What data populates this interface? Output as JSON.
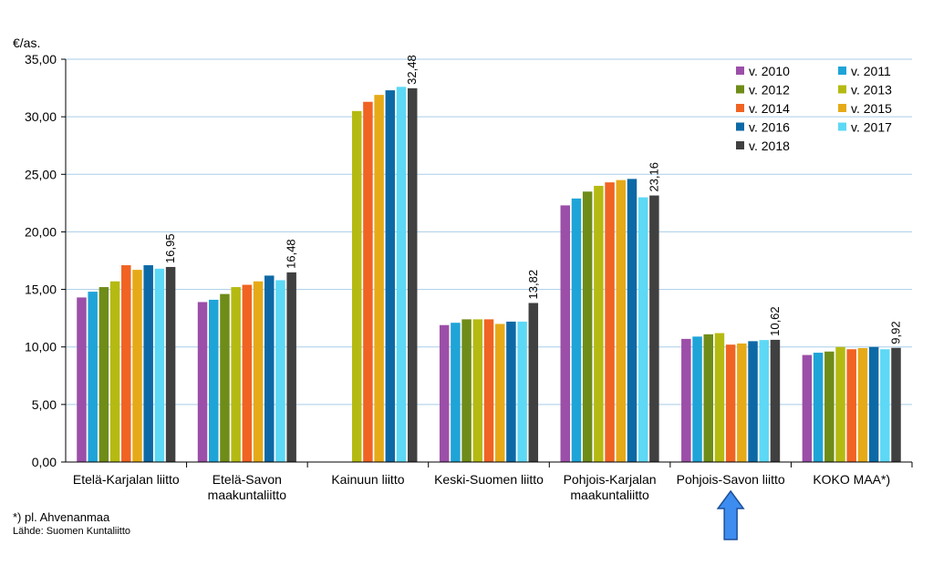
{
  "chart_data": {
    "type": "bar",
    "ylabel": "€/as.",
    "ylim": [
      0,
      35
    ],
    "ytick_step": 5,
    "ytick_labels": [
      "0,00",
      "5,00",
      "10,00",
      "15,00",
      "20,00",
      "25,00",
      "30,00",
      "35,00"
    ],
    "grid": true,
    "legend_position": "top-right",
    "categories": [
      [
        "Etelä-Karjalan liitto"
      ],
      [
        "Etelä-Savon",
        "maakuntaliitto"
      ],
      [
        "Kainuun liitto"
      ],
      [
        "Keski-Suomen liitto"
      ],
      [
        "Pohjois-Karjalan",
        "maakuntaliitto"
      ],
      [
        "Pohjois-Savon liitto"
      ],
      [
        "KOKO MAA*)"
      ]
    ],
    "series": [
      {
        "name": "v. 2010",
        "color": "#9b4fa8",
        "values": [
          14.3,
          13.9,
          null,
          11.9,
          22.3,
          10.7,
          9.3
        ]
      },
      {
        "name": "v. 2011",
        "color": "#1fa4d8",
        "values": [
          14.8,
          14.1,
          null,
          12.1,
          22.9,
          10.9,
          9.5
        ]
      },
      {
        "name": "v. 2012",
        "color": "#6f8c19",
        "values": [
          15.2,
          14.6,
          null,
          12.4,
          23.5,
          11.1,
          9.6
        ]
      },
      {
        "name": "v. 2013",
        "color": "#b5ba12",
        "values": [
          15.7,
          15.2,
          30.5,
          12.4,
          24.0,
          11.2,
          10.0
        ]
      },
      {
        "name": "v. 2014",
        "color": "#f06323",
        "values": [
          17.1,
          15.4,
          31.3,
          12.4,
          24.3,
          10.2,
          9.8
        ]
      },
      {
        "name": "v. 2015",
        "color": "#e6aa18",
        "values": [
          16.7,
          15.7,
          31.9,
          12.0,
          24.5,
          10.3,
          9.9
        ]
      },
      {
        "name": "v. 2016",
        "color": "#0d69a6",
        "values": [
          17.1,
          16.2,
          32.3,
          12.2,
          24.6,
          10.5,
          10.0
        ]
      },
      {
        "name": "v. 2017",
        "color": "#5dd8f5",
        "values": [
          16.8,
          15.8,
          32.6,
          12.2,
          23.0,
          10.6,
          9.8
        ]
      },
      {
        "name": "v. 2018",
        "color": "#404040",
        "values": [
          16.95,
          16.48,
          32.48,
          13.82,
          23.16,
          10.62,
          9.92
        ]
      }
    ],
    "data_labels": [
      "16,95",
      "16,48",
      "32,48",
      "13,82",
      "23,16",
      "10,62",
      "9,92"
    ],
    "highlight_category_index": 5,
    "highlight_color": "#3d8df0"
  },
  "footnote": "*) pl. Ahvenanmaa",
  "source": "Lähde: Suomen Kuntaliitto"
}
